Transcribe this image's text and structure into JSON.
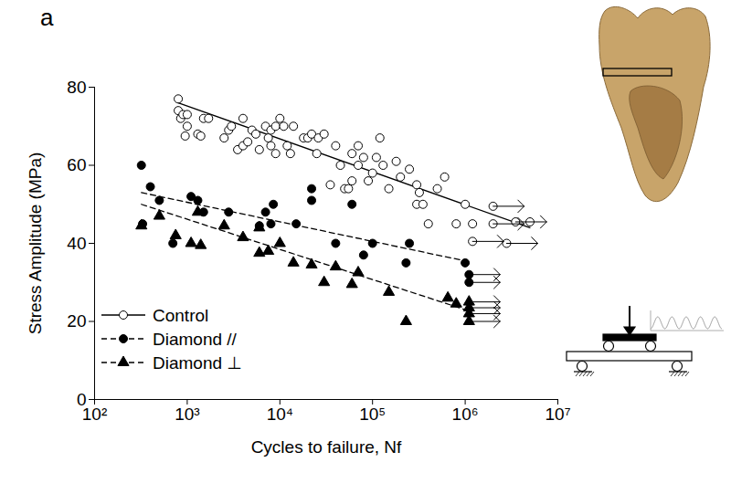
{
  "chart_data": {
    "type": "scatter",
    "annotations": [
      "a"
    ],
    "x_label": "Cycles to failure, Nf",
    "y_label": "Stress Amplitude (MPa)",
    "log": "x",
    "grid": false,
    "legend": "lower left",
    "xlim": [
      100,
      10000000
    ],
    "xticks": [
      {
        "value": 100,
        "label": "10²"
      },
      {
        "value": 1000,
        "label": "10³"
      },
      {
        "value": 10000,
        "label": "10⁴"
      },
      {
        "value": 100000,
        "label": "10⁵"
      },
      {
        "value": 1000000,
        "label": "10⁶"
      },
      {
        "value": 10000000,
        "label": "10⁷"
      }
    ],
    "ylim": [
      0,
      80
    ],
    "yticks": [
      0,
      20,
      40,
      60,
      80
    ],
    "series": [
      {
        "name": "Control",
        "color": "#000000",
        "marker": "circle-open",
        "line_style": "solid",
        "x": [
          800,
          800,
          850,
          900,
          950,
          1000,
          1000,
          1300,
          1400,
          1500,
          1700,
          2500,
          2800,
          3000,
          3500,
          4000,
          4000,
          4500,
          5000,
          5500,
          6000,
          7000,
          7500,
          8000,
          8000,
          9000,
          9000,
          10000,
          11000,
          12000,
          13000,
          14000,
          18000,
          20000,
          22000,
          25000,
          26000,
          30000,
          35000,
          40000,
          45000,
          50000,
          55000,
          60000,
          60000,
          70000,
          70000,
          80000,
          90000,
          100000,
          110000,
          120000,
          130000,
          150000,
          180000,
          200000,
          250000,
          300000,
          300000,
          320000,
          350000,
          400000,
          500000,
          600000,
          800000,
          1000000,
          1200000,
          5000000
        ],
        "values": [
          77,
          74,
          72,
          73,
          67.5,
          70,
          73,
          68,
          67.5,
          72,
          72,
          67,
          69,
          70,
          64,
          65,
          72,
          66,
          69,
          68,
          64,
          70,
          67,
          65,
          69,
          63,
          70,
          72,
          70,
          65,
          63,
          70,
          67,
          67,
          68,
          63,
          67,
          68,
          55,
          65,
          60,
          54,
          54,
          56,
          63,
          65,
          60,
          62,
          56,
          58,
          62,
          67,
          60,
          54,
          61,
          57,
          59,
          50,
          55,
          53,
          50,
          45,
          54,
          57,
          45,
          50,
          45,
          45.5
        ],
        "runouts": {
          "x": [
            2000000,
            2000000,
            3500000,
            1200000,
            2800000
          ],
          "values": [
            49.5,
            45,
            45.5,
            40.5,
            40
          ]
        },
        "trend": {
          "x": [
            800,
            5000000
          ],
          "values": [
            76,
            44
          ]
        }
      },
      {
        "name": "Diamond //",
        "color": "#000000",
        "marker": "circle",
        "line_style": "dashed",
        "x": [
          320,
          330,
          400,
          500,
          700,
          1100,
          1300,
          1500,
          2800,
          6000,
          7000,
          8000,
          8500,
          15000,
          22000,
          22000,
          40000,
          60000,
          80000,
          100000,
          230000,
          250000,
          1000000
        ],
        "values": [
          60,
          45,
          54.5,
          51,
          40,
          52,
          51,
          48,
          48,
          44.5,
          48,
          45,
          50,
          45,
          51,
          54,
          40,
          50,
          37,
          40,
          35,
          40,
          35
        ],
        "runouts": {
          "x": [
            1100000,
            1100000
          ],
          "values": [
            32,
            30
          ]
        },
        "trend": {
          "x": [
            320,
            1000000
          ],
          "values": [
            53,
            35.5
          ]
        }
      },
      {
        "name": "Diamond ⊥",
        "color": "#000000",
        "marker": "triangle",
        "line_style": "dashed",
        "x": [
          320,
          500,
          750,
          1100,
          1300,
          1400,
          2500,
          4000,
          6000,
          6000,
          7500,
          10000,
          14000,
          22000,
          30000,
          40000,
          60000,
          70000,
          150000,
          230000,
          650000,
          800000
        ],
        "values": [
          44.5,
          47,
          42,
          40,
          48,
          39.5,
          44.5,
          41.5,
          37.5,
          44,
          38,
          40,
          35,
          34.5,
          30,
          34,
          29.5,
          32.5,
          27.5,
          20,
          26,
          24.5
        ],
        "runouts": {
          "x": [
            1100000,
            1100000,
            1100000,
            1100000
          ],
          "values": [
            25,
            23.5,
            22,
            20
          ]
        },
        "trend": {
          "x": [
            320,
            1000000
          ],
          "values": [
            50,
            23
          ]
        }
      }
    ]
  }
}
